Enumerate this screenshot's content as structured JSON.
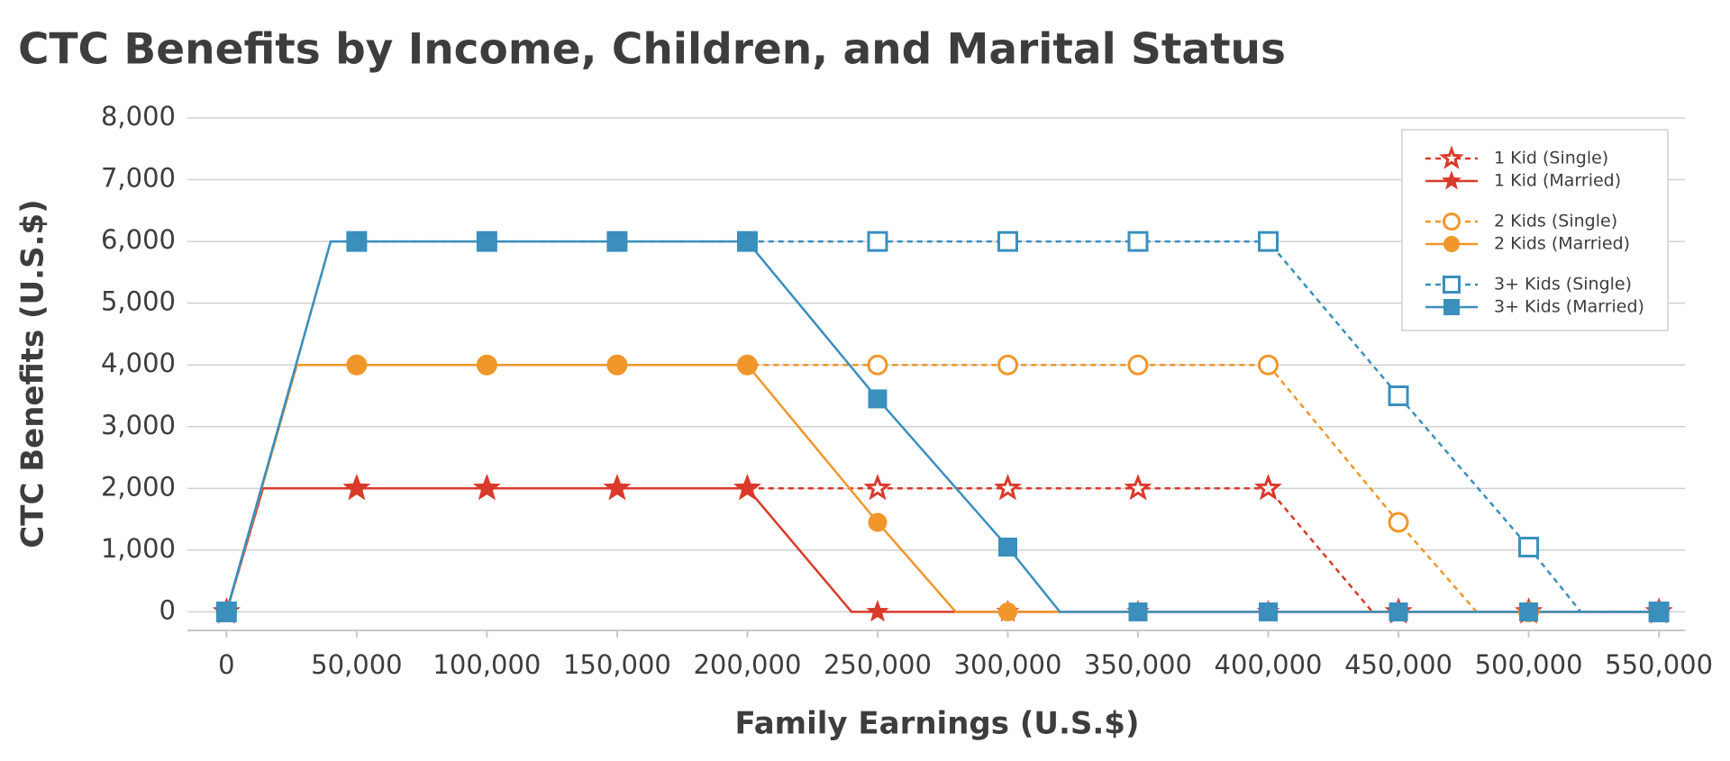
{
  "chart_data": {
    "type": "line",
    "title": "CTC Benefits by Income, Children, and Marital Status",
    "x_label": "Family Earnings (U.S.$)",
    "y_label": "CTC Benefits (U.S.$)",
    "xlim": [
      -15000,
      560000
    ],
    "ylim": [
      -300,
      8000
    ],
    "xticks": [
      0,
      {
        "value": 50000,
        "label": "50,000"
      },
      {
        "value": 100000,
        "label": "100,000"
      },
      {
        "value": 150000,
        "label": "150,000"
      },
      {
        "value": 200000,
        "label": "200,000"
      },
      {
        "value": 250000,
        "label": "250,000"
      },
      {
        "value": 300000,
        "label": "300,000"
      },
      {
        "value": 350000,
        "label": "350,000"
      },
      {
        "value": 400000,
        "label": "400,000"
      },
      {
        "value": 450000,
        "label": "450,000"
      },
      {
        "value": 500000,
        "label": "500,000"
      },
      {
        "value": 550000,
        "label": "550,000"
      }
    ],
    "yticks": [
      0,
      {
        "value": 1000,
        "label": "1,000"
      },
      {
        "value": 2000,
        "label": "2,000"
      },
      {
        "value": 3000,
        "label": "3,000"
      },
      {
        "value": 4000,
        "label": "4,000"
      },
      {
        "value": 5000,
        "label": "5,000"
      },
      {
        "value": 6000,
        "label": "6,000"
      },
      {
        "value": 7000,
        "label": "7,000"
      },
      {
        "value": 8000,
        "label": "8,000"
      }
    ],
    "grid": true,
    "legend": "upper right",
    "series": [
      {
        "name": "1 Kid (Single)",
        "color": "#d93a2b",
        "marker": "star",
        "dashed": true,
        "x": [
          0,
          14000,
          50000,
          100000,
          150000,
          200000,
          250000,
          300000,
          350000,
          400000,
          440000,
          450000,
          500000,
          550000
        ],
        "values": [
          0,
          2000,
          2000,
          2000,
          2000,
          2000,
          2000,
          2000,
          2000,
          2000,
          0,
          0,
          0,
          0
        ]
      },
      {
        "name": "1 Kid (Married)",
        "color": "#d93a2b",
        "marker": "star",
        "dashed": false,
        "x": [
          0,
          14000,
          50000,
          100000,
          150000,
          200000,
          240000,
          250000,
          300000,
          350000,
          400000,
          450000,
          500000,
          550000
        ],
        "values": [
          0,
          2000,
          2000,
          2000,
          2000,
          2000,
          0,
          0,
          0,
          0,
          0,
          0,
          0,
          0
        ]
      },
      {
        "name": "2 Kids (Single)",
        "color": "#f0962a",
        "marker": "circle",
        "dashed": true,
        "x": [
          0,
          27000,
          50000,
          100000,
          150000,
          200000,
          250000,
          300000,
          350000,
          400000,
          450000,
          480000,
          500000,
          550000
        ],
        "values": [
          0,
          4000,
          4000,
          4000,
          4000,
          4000,
          4000,
          4000,
          4000,
          4000,
          1450,
          0,
          0,
          0
        ]
      },
      {
        "name": "2 Kids (Married)",
        "color": "#f0962a",
        "marker": "circle",
        "dashed": false,
        "x": [
          0,
          27000,
          50000,
          100000,
          150000,
          200000,
          250000,
          280000,
          300000,
          350000,
          400000,
          450000,
          500000,
          550000
        ],
        "values": [
          0,
          4000,
          4000,
          4000,
          4000,
          4000,
          1450,
          0,
          0,
          0,
          0,
          0,
          0,
          0
        ]
      },
      {
        "name": "3+ Kids (Single)",
        "color": "#3a8fbd",
        "marker": "square",
        "dashed": true,
        "x": [
          0,
          40000,
          50000,
          100000,
          150000,
          200000,
          250000,
          300000,
          350000,
          400000,
          450000,
          500000,
          520000,
          550000
        ],
        "values": [
          0,
          6000,
          6000,
          6000,
          6000,
          6000,
          6000,
          6000,
          6000,
          6000,
          3500,
          1050,
          0,
          0
        ]
      },
      {
        "name": "3+ Kids (Married)",
        "color": "#3a8fbd",
        "marker": "square",
        "dashed": false,
        "x": [
          0,
          40000,
          50000,
          100000,
          150000,
          200000,
          250000,
          300000,
          320000,
          350000,
          400000,
          450000,
          500000,
          550000
        ],
        "values": [
          0,
          6000,
          6000,
          6000,
          6000,
          6000,
          3450,
          1050,
          0,
          0,
          0,
          0,
          0,
          0
        ]
      }
    ]
  }
}
